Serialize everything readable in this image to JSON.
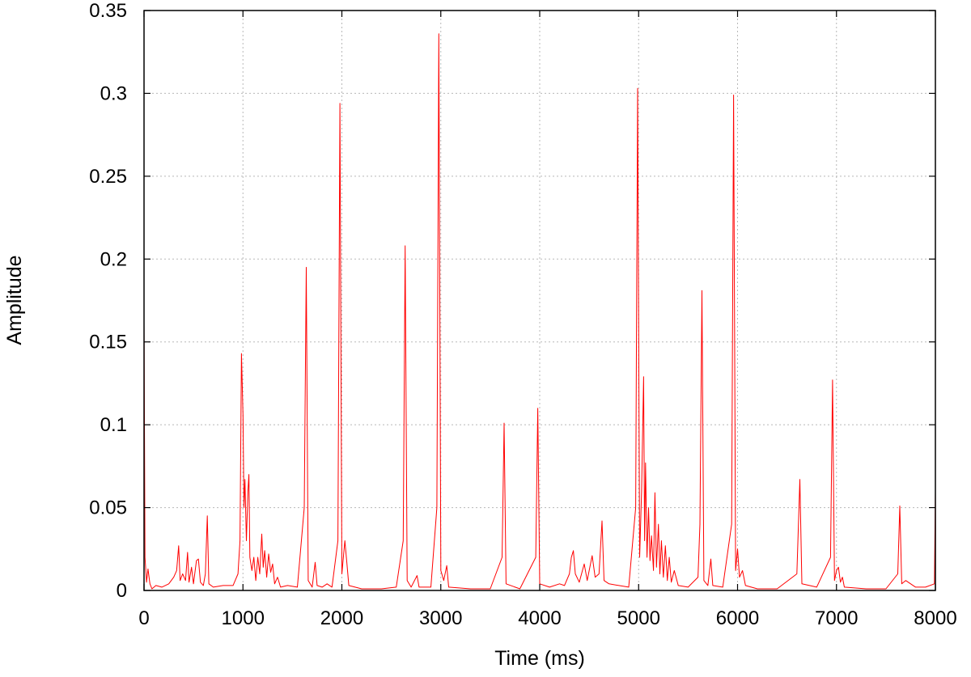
{
  "chart_data": {
    "type": "line",
    "title": "",
    "xlabel": "Time (ms)",
    "ylabel": "Amplitude",
    "xlim": [
      0,
      8000
    ],
    "ylim": [
      0,
      0.35
    ],
    "xticks": [
      0,
      1000,
      2000,
      3000,
      4000,
      5000,
      6000,
      7000,
      8000
    ],
    "xtick_labels": [
      "0",
      "1000",
      "2000",
      "3000",
      "4000",
      "5000",
      "6000",
      "7000",
      "8000"
    ],
    "yticks": [
      0,
      0.05,
      0.1,
      0.15,
      0.2,
      0.25,
      0.3,
      0.35
    ],
    "ytick_labels": [
      "0",
      "0.05",
      "0.1",
      "0.15",
      "0.2",
      "0.25",
      "0.3",
      "0.35"
    ],
    "grid": true,
    "legend": "none",
    "series": [
      {
        "color": "#ff0000",
        "points": [
          [
            0,
            0.162
          ],
          [
            10,
            0.02
          ],
          [
            25,
            0.005
          ],
          [
            40,
            0.013
          ],
          [
            60,
            0.004
          ],
          [
            80,
            0.001
          ],
          [
            120,
            0.003
          ],
          [
            180,
            0.002
          ],
          [
            250,
            0.004
          ],
          [
            300,
            0.008
          ],
          [
            330,
            0.012
          ],
          [
            350,
            0.027
          ],
          [
            365,
            0.006
          ],
          [
            390,
            0.01
          ],
          [
            420,
            0.006
          ],
          [
            440,
            0.023
          ],
          [
            455,
            0.005
          ],
          [
            480,
            0.014
          ],
          [
            500,
            0.004
          ],
          [
            530,
            0.018
          ],
          [
            550,
            0.019
          ],
          [
            570,
            0.005
          ],
          [
            600,
            0.003
          ],
          [
            620,
            0.01
          ],
          [
            640,
            0.045
          ],
          [
            655,
            0.004
          ],
          [
            700,
            0.002
          ],
          [
            800,
            0.003
          ],
          [
            900,
            0.003
          ],
          [
            950,
            0.01
          ],
          [
            970,
            0.03
          ],
          [
            985,
            0.143
          ],
          [
            1000,
            0.106
          ],
          [
            1010,
            0.05
          ],
          [
            1020,
            0.067
          ],
          [
            1035,
            0.03
          ],
          [
            1050,
            0.06
          ],
          [
            1060,
            0.07
          ],
          [
            1070,
            0.02
          ],
          [
            1090,
            0.012
          ],
          [
            1110,
            0.02
          ],
          [
            1130,
            0.006
          ],
          [
            1150,
            0.02
          ],
          [
            1170,
            0.01
          ],
          [
            1190,
            0.034
          ],
          [
            1205,
            0.014
          ],
          [
            1220,
            0.024
          ],
          [
            1240,
            0.008
          ],
          [
            1260,
            0.022
          ],
          [
            1280,
            0.011
          ],
          [
            1300,
            0.016
          ],
          [
            1320,
            0.004
          ],
          [
            1350,
            0.008
          ],
          [
            1380,
            0.002
          ],
          [
            1450,
            0.003
          ],
          [
            1550,
            0.002
          ],
          [
            1620,
            0.05
          ],
          [
            1640,
            0.195
          ],
          [
            1660,
            0.006
          ],
          [
            1700,
            0.002
          ],
          [
            1730,
            0.017
          ],
          [
            1750,
            0.003
          ],
          [
            1800,
            0.002
          ],
          [
            1850,
            0.004
          ],
          [
            1900,
            0.002
          ],
          [
            1960,
            0.03
          ],
          [
            1980,
            0.294
          ],
          [
            2000,
            0.01
          ],
          [
            2030,
            0.03
          ],
          [
            2050,
            0.017
          ],
          [
            2070,
            0.003
          ],
          [
            2200,
            0.001
          ],
          [
            2400,
            0.001
          ],
          [
            2550,
            0.002
          ],
          [
            2620,
            0.03
          ],
          [
            2640,
            0.208
          ],
          [
            2660,
            0.006
          ],
          [
            2700,
            0.002
          ],
          [
            2760,
            0.009
          ],
          [
            2780,
            0.002
          ],
          [
            2900,
            0.002
          ],
          [
            2960,
            0.05
          ],
          [
            2980,
            0.336
          ],
          [
            3000,
            0.012
          ],
          [
            3030,
            0.006
          ],
          [
            3060,
            0.015
          ],
          [
            3080,
            0.002
          ],
          [
            3300,
            0.001
          ],
          [
            3500,
            0.001
          ],
          [
            3620,
            0.02
          ],
          [
            3640,
            0.101
          ],
          [
            3660,
            0.004
          ],
          [
            3800,
            0.001
          ],
          [
            3960,
            0.02
          ],
          [
            3980,
            0.11
          ],
          [
            4000,
            0.004
          ],
          [
            4100,
            0.002
          ],
          [
            4200,
            0.004
          ],
          [
            4250,
            0.003
          ],
          [
            4300,
            0.01
          ],
          [
            4320,
            0.02
          ],
          [
            4340,
            0.024
          ],
          [
            4360,
            0.01
          ],
          [
            4400,
            0.005
          ],
          [
            4450,
            0.016
          ],
          [
            4480,
            0.006
          ],
          [
            4530,
            0.021
          ],
          [
            4560,
            0.008
          ],
          [
            4600,
            0.01
          ],
          [
            4630,
            0.042
          ],
          [
            4650,
            0.006
          ],
          [
            4700,
            0.004
          ],
          [
            4800,
            0.003
          ],
          [
            4900,
            0.002
          ],
          [
            4970,
            0.05
          ],
          [
            4990,
            0.303
          ],
          [
            5010,
            0.02
          ],
          [
            5030,
            0.06
          ],
          [
            5050,
            0.129
          ],
          [
            5060,
            0.03
          ],
          [
            5070,
            0.077
          ],
          [
            5085,
            0.02
          ],
          [
            5100,
            0.05
          ],
          [
            5115,
            0.018
          ],
          [
            5130,
            0.033
          ],
          [
            5150,
            0.012
          ],
          [
            5165,
            0.059
          ],
          [
            5180,
            0.014
          ],
          [
            5200,
            0.04
          ],
          [
            5215,
            0.01
          ],
          [
            5230,
            0.03
          ],
          [
            5250,
            0.008
          ],
          [
            5270,
            0.027
          ],
          [
            5290,
            0.006
          ],
          [
            5310,
            0.02
          ],
          [
            5330,
            0.005
          ],
          [
            5360,
            0.012
          ],
          [
            5400,
            0.003
          ],
          [
            5500,
            0.002
          ],
          [
            5600,
            0.008
          ],
          [
            5620,
            0.04
          ],
          [
            5640,
            0.181
          ],
          [
            5660,
            0.006
          ],
          [
            5700,
            0.003
          ],
          [
            5730,
            0.019
          ],
          [
            5750,
            0.003
          ],
          [
            5850,
            0.002
          ],
          [
            5940,
            0.04
          ],
          [
            5960,
            0.299
          ],
          [
            5980,
            0.012
          ],
          [
            6000,
            0.025
          ],
          [
            6020,
            0.008
          ],
          [
            6050,
            0.012
          ],
          [
            6080,
            0.003
          ],
          [
            6200,
            0.001
          ],
          [
            6400,
            0.001
          ],
          [
            6600,
            0.01
          ],
          [
            6630,
            0.067
          ],
          [
            6650,
            0.004
          ],
          [
            6800,
            0.002
          ],
          [
            6940,
            0.02
          ],
          [
            6960,
            0.127
          ],
          [
            6980,
            0.006
          ],
          [
            7000,
            0.012
          ],
          [
            7020,
            0.014
          ],
          [
            7040,
            0.005
          ],
          [
            7060,
            0.008
          ],
          [
            7080,
            0.002
          ],
          [
            7300,
            0.001
          ],
          [
            7500,
            0.001
          ],
          [
            7620,
            0.01
          ],
          [
            7640,
            0.051
          ],
          [
            7660,
            0.004
          ],
          [
            7700,
            0.006
          ],
          [
            7750,
            0.004
          ],
          [
            7800,
            0.002
          ],
          [
            7900,
            0.002
          ],
          [
            7990,
            0.004
          ],
          [
            8000,
            0.06
          ]
        ]
      }
    ]
  }
}
